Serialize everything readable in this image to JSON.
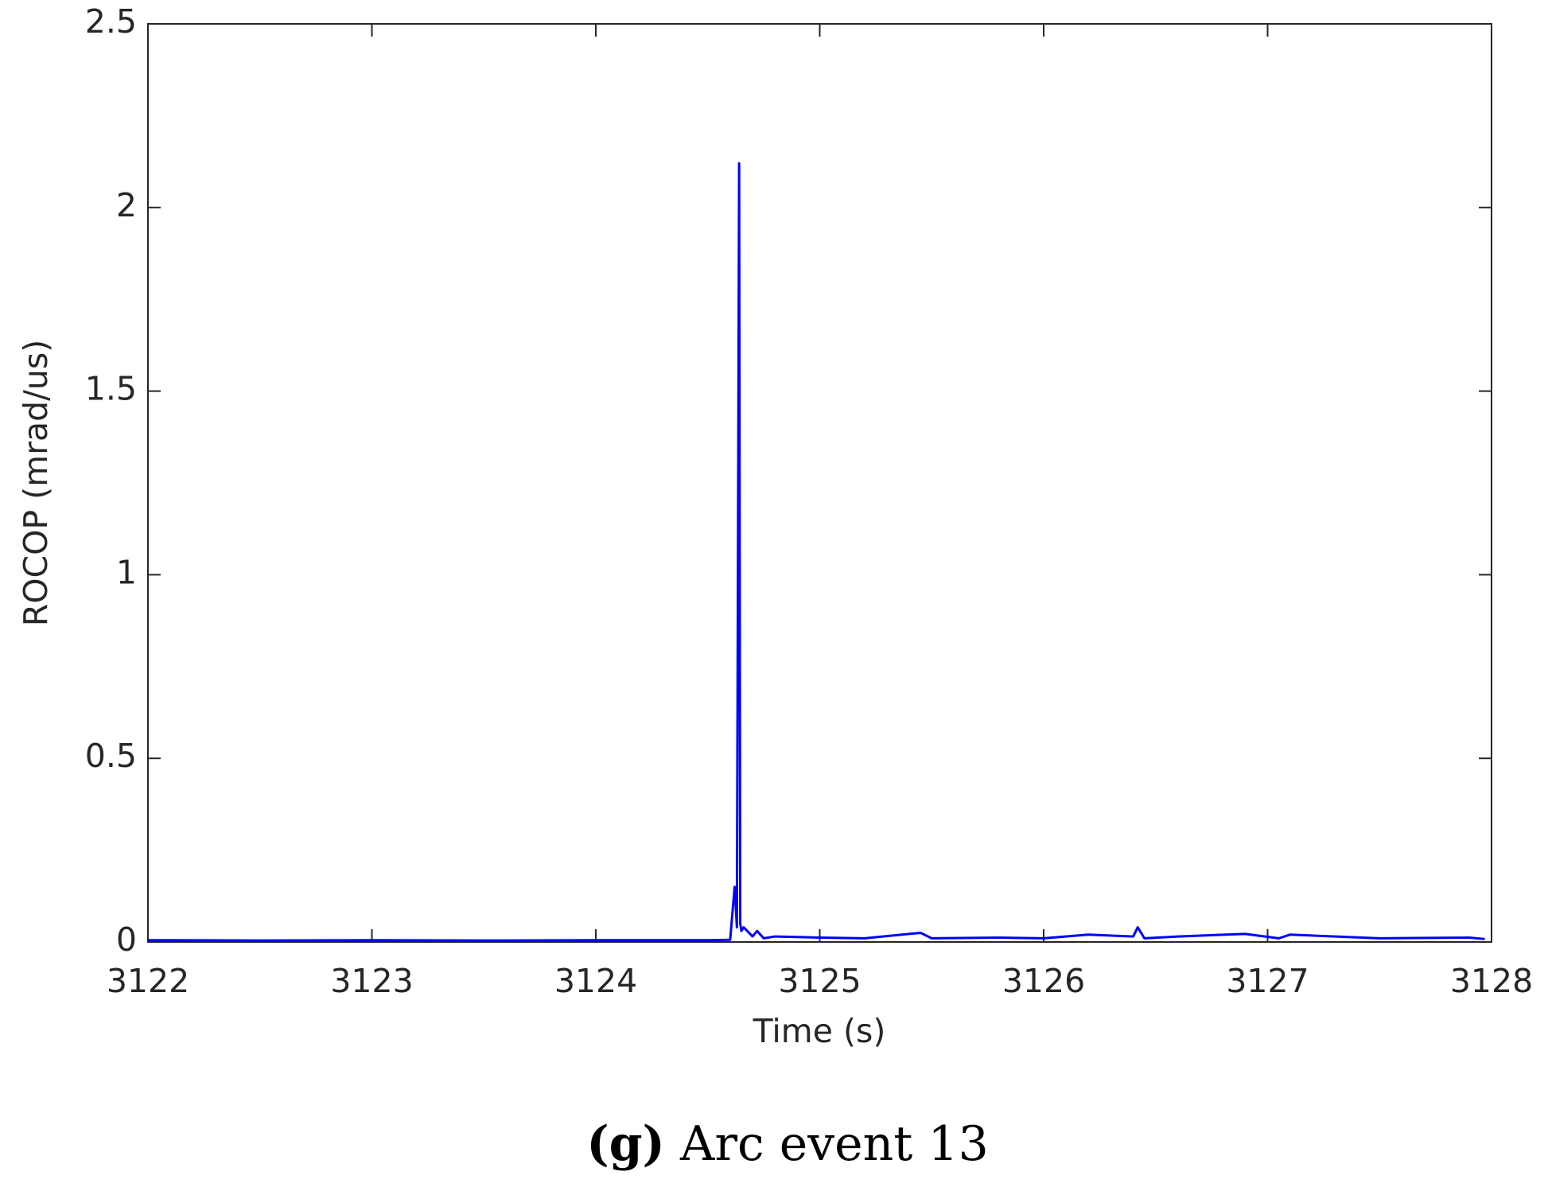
{
  "chart_data": {
    "type": "line",
    "xlabel": "Time (s)",
    "ylabel": "ROCOP (mrad/us)",
    "caption": {
      "label": "(g)",
      "text": "Arc event 13"
    },
    "x": [
      3122,
      3122.5,
      3123,
      3123.5,
      3124,
      3124.5,
      3124.6,
      3124.62,
      3124.63,
      3124.64,
      3124.645,
      3124.65,
      3124.66,
      3124.7,
      3124.72,
      3124.75,
      3124.8,
      3125,
      3125.2,
      3125.45,
      3125.5,
      3125.8,
      3126,
      3126.2,
      3126.4,
      3126.42,
      3126.45,
      3126.6,
      3126.9,
      3127.05,
      3127.1,
      3127.5,
      3127.9,
      3127.97
    ],
    "series": [
      {
        "color": "#0000ff",
        "values": [
          0.005,
          0.004,
          0.005,
          0.004,
          0.005,
          0.005,
          0.006,
          0.15,
          0.04,
          2.12,
          0.05,
          0.03,
          0.04,
          0.015,
          0.03,
          0.01,
          0.015,
          0.012,
          0.01,
          0.025,
          0.01,
          0.012,
          0.01,
          0.02,
          0.015,
          0.04,
          0.01,
          0.015,
          0.022,
          0.01,
          0.02,
          0.01,
          0.012,
          0.008
        ]
      }
    ],
    "xlim": [
      3122,
      3128
    ],
    "xticks": [
      3122,
      3123,
      3124,
      3125,
      3126,
      3127,
      3128
    ],
    "ylim": [
      0,
      2.5
    ],
    "yticks": [
      0,
      0.5,
      1,
      1.5,
      2,
      2.5
    ],
    "grid": false
  }
}
